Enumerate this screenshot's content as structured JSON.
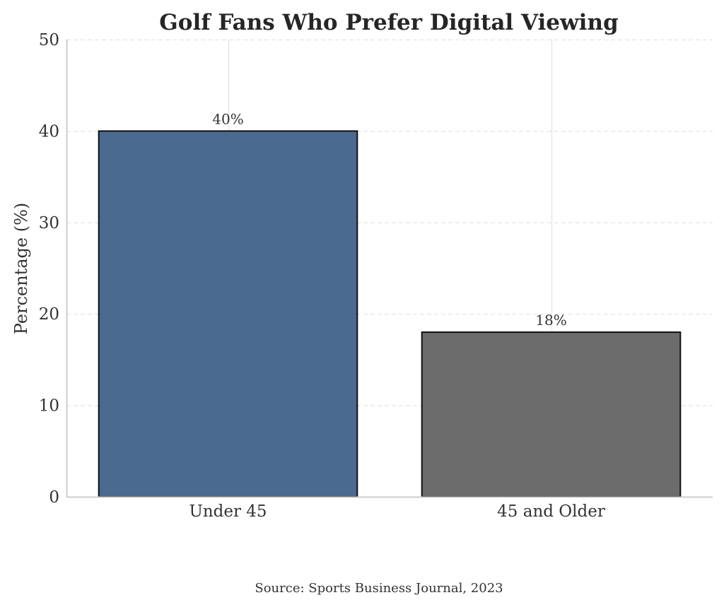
{
  "chart_data": {
    "type": "bar",
    "title": "Golf Fans Who Prefer Digital Viewing",
    "xlabel": "",
    "ylabel": "Percentage (%)",
    "categories": [
      "Under 45",
      "45 and Older"
    ],
    "values": [
      40,
      18
    ],
    "data_labels": [
      "40%",
      "18%"
    ],
    "colors": [
      "#4a6a8f",
      "#6c6c6c"
    ],
    "edge_color": "#111111",
    "ylim": [
      0,
      50
    ],
    "yticks": [
      0,
      10,
      20,
      30,
      40,
      50
    ],
    "ytick_labels": [
      "0",
      "10",
      "20",
      "30",
      "40",
      "50"
    ],
    "grid": true,
    "legend": "none",
    "source_note": "Source: Sports Business Journal, 2023"
  }
}
